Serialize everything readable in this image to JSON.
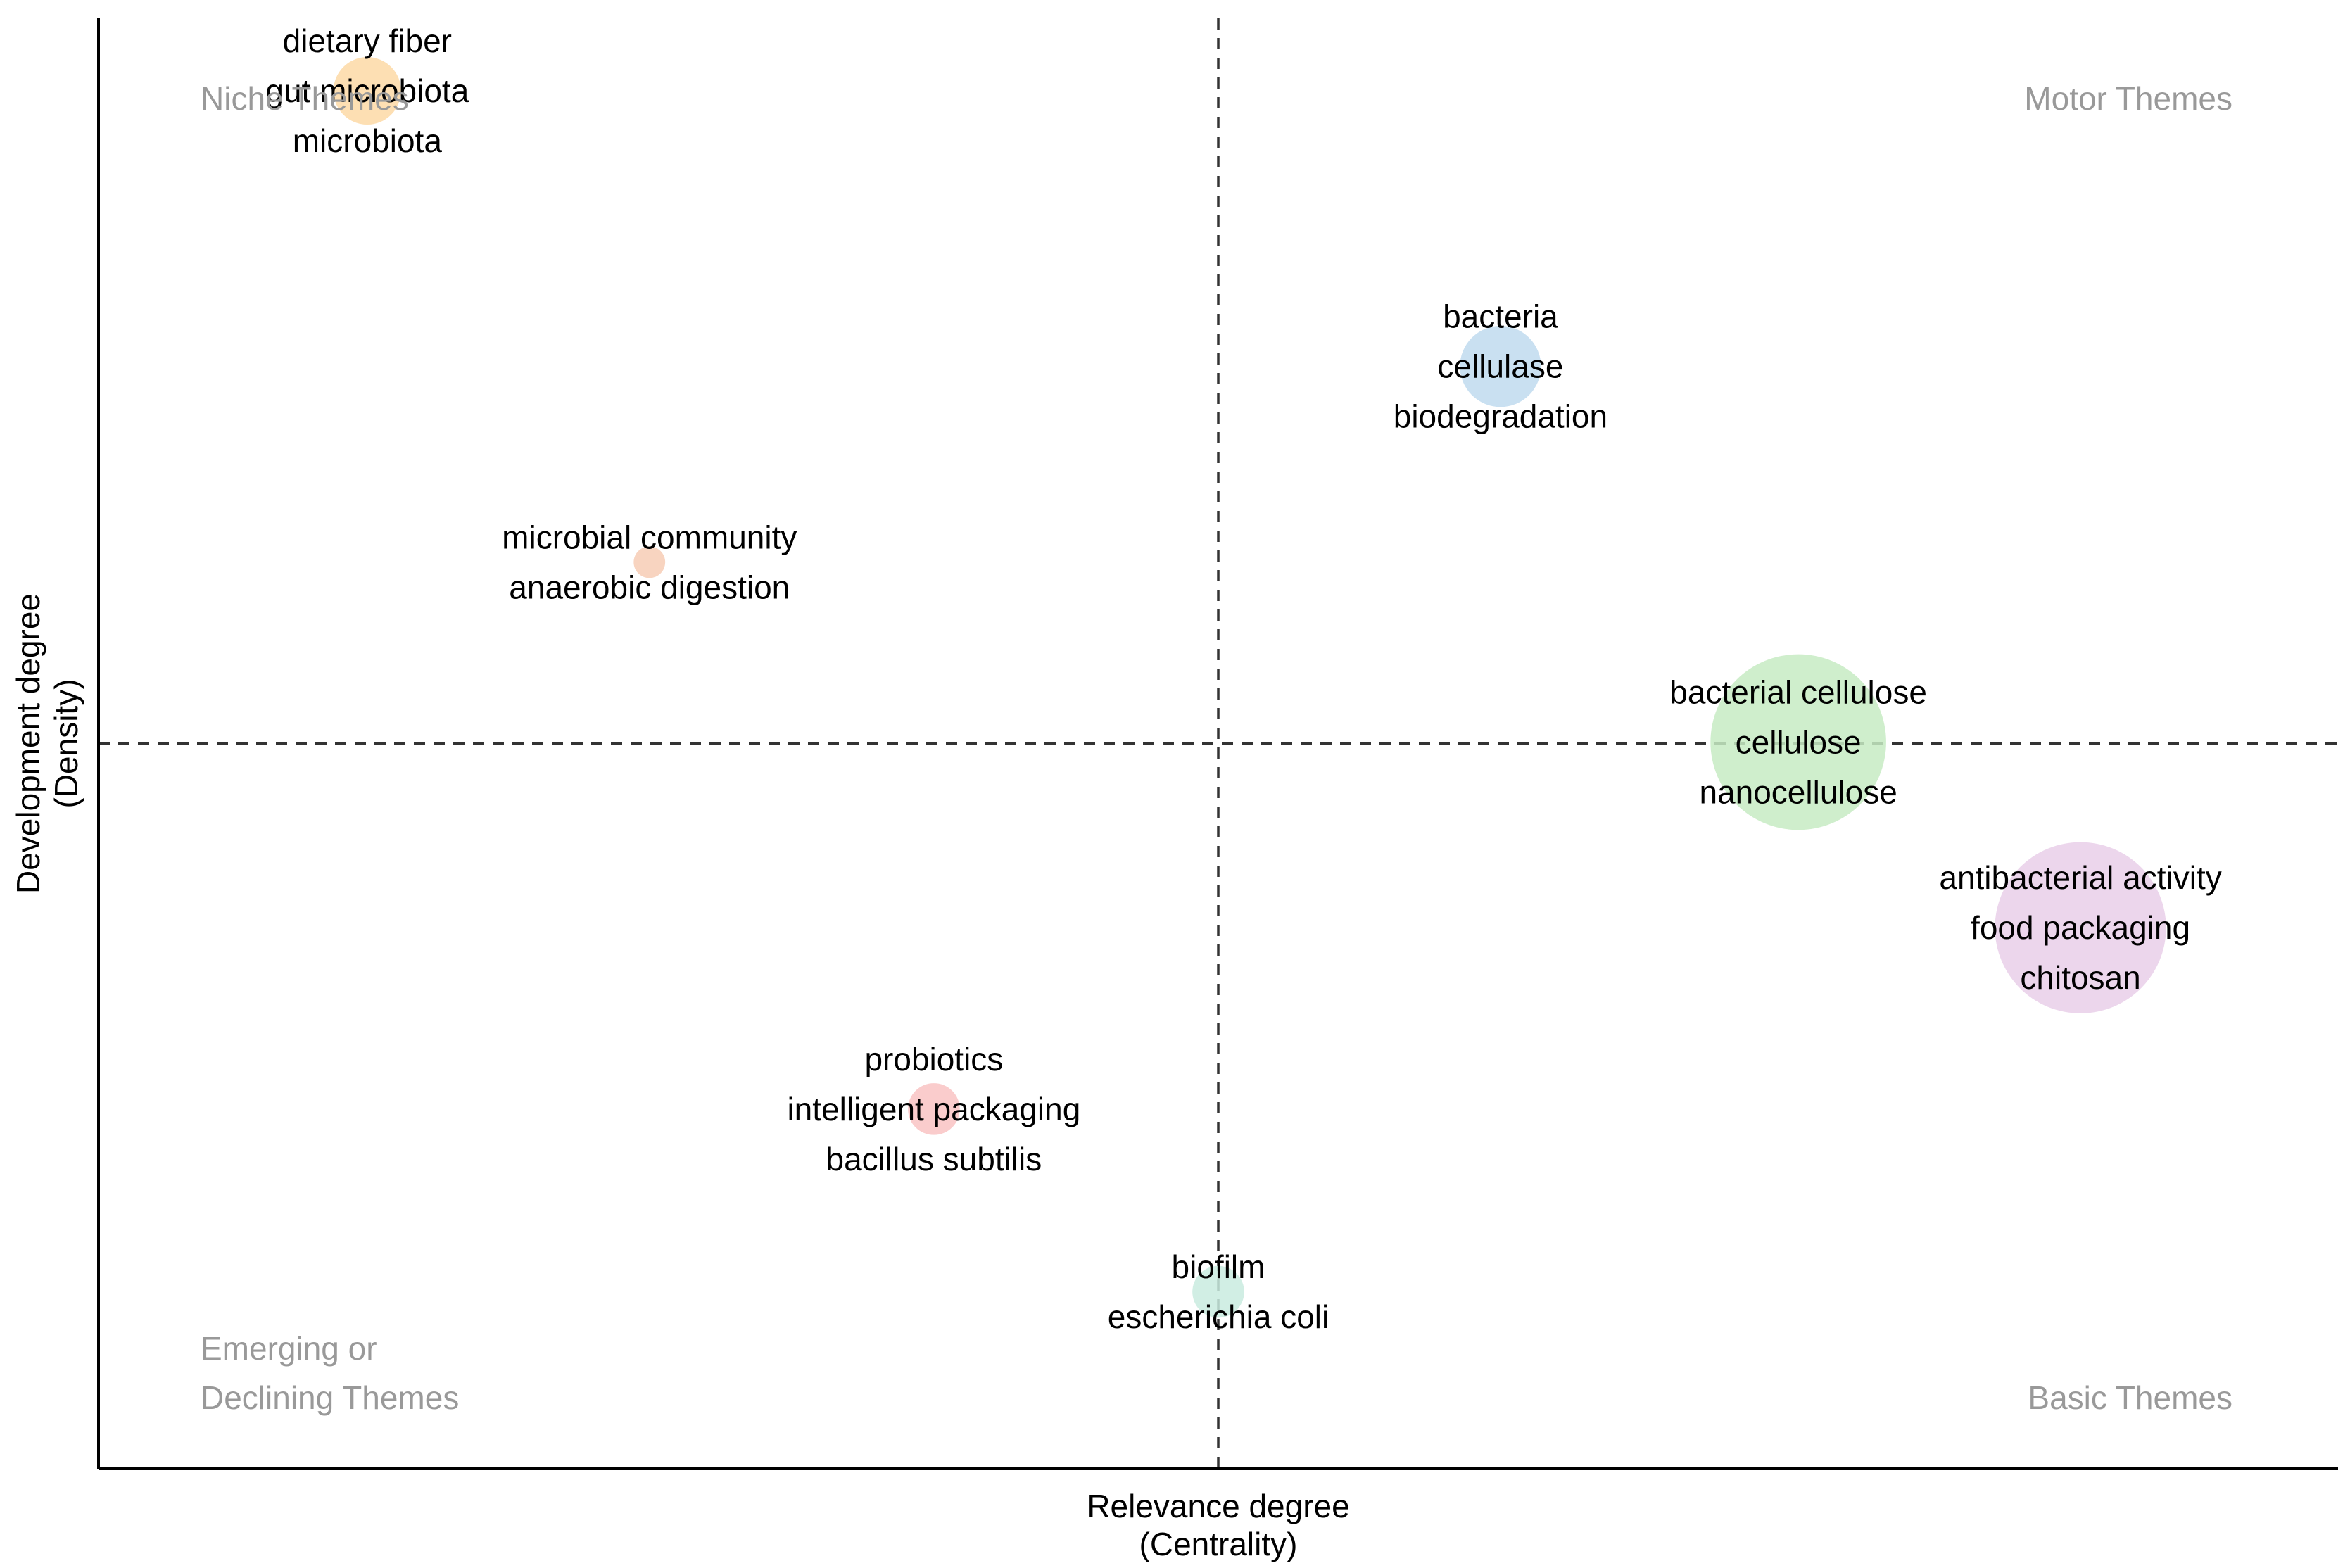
{
  "chart_data": {
    "type": "scatter",
    "subtype": "thematic-map-bubble",
    "xlabel": [
      "Relevance degree",
      "(Centrality)"
    ],
    "ylabel": [
      "Development degree",
      "(Density)"
    ],
    "xlim": [
      0,
      100
    ],
    "ylim": [
      0,
      100
    ],
    "x_divider": 50,
    "y_divider": 50,
    "divider_style": "dashed",
    "grid": false,
    "axis_ticks": false,
    "quadrants": [
      {
        "position": "top-left",
        "lines": [
          "Niche Themes"
        ]
      },
      {
        "position": "top-right",
        "lines": [
          "Motor Themes"
        ]
      },
      {
        "position": "bottom-left",
        "lines": [
          "Emerging or",
          "Declining Themes"
        ]
      },
      {
        "position": "bottom-right",
        "lines": [
          "Basic Themes"
        ]
      }
    ],
    "points": [
      {
        "x": 12.0,
        "y": 95.0,
        "size": 3.0,
        "color": "#fdd9a6",
        "labels": [
          "dietary fiber",
          "gut microbiota",
          "microbiota"
        ]
      },
      {
        "x": 62.6,
        "y": 76.0,
        "size": 3.6,
        "color": "#c0dbef",
        "labels": [
          "bacteria",
          "cellulase",
          "biodegradation"
        ]
      },
      {
        "x": 24.6,
        "y": 62.5,
        "size": 1.4,
        "color": "#f7cdb5",
        "labels": [
          "microbial community",
          "anaerobic digestion"
        ]
      },
      {
        "x": 75.9,
        "y": 50.1,
        "size": 7.8,
        "color": "#c7ebc3",
        "labels": [
          "bacterial cellulose",
          "cellulose",
          "nanocellulose"
        ]
      },
      {
        "x": 88.5,
        "y": 37.3,
        "size": 7.6,
        "color": "#e9cfe9",
        "labels": [
          "antibacterial activity",
          "food packaging",
          "chitosan"
        ]
      },
      {
        "x": 37.3,
        "y": 24.8,
        "size": 2.3,
        "color": "#f9c3c3",
        "labels": [
          "probiotics",
          "intelligent packaging",
          "bacillus subtilis"
        ]
      },
      {
        "x": 50.0,
        "y": 12.2,
        "size": 2.3,
        "color": "#c9ebdf",
        "labels": [
          "biofilm",
          "escherichia coli"
        ]
      }
    ]
  }
}
